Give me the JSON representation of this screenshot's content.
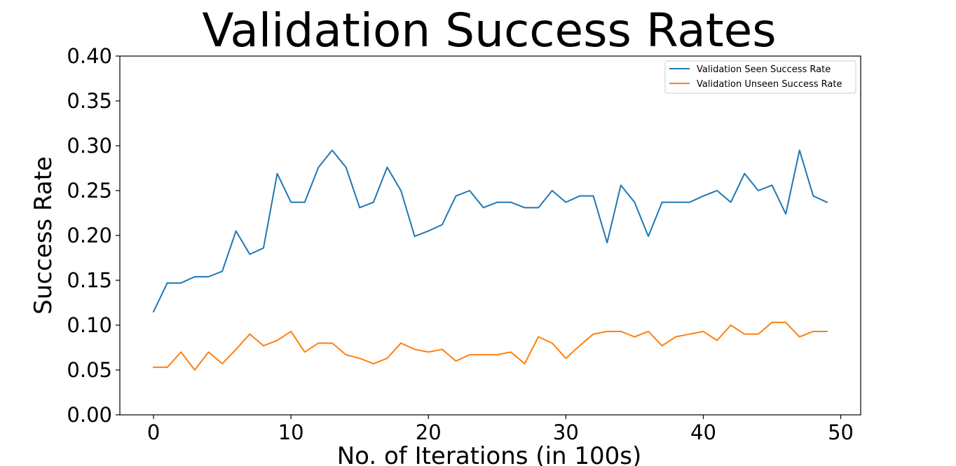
{
  "chart_data": {
    "type": "line",
    "title": "Validation Success Rates",
    "xlabel": "No. of Iterations (in 100s)",
    "ylabel": "Success Rate",
    "xlim": [
      -2.45,
      51.45
    ],
    "ylim": [
      0.0,
      0.4
    ],
    "xticks": [
      0,
      10,
      20,
      30,
      40,
      50
    ],
    "yticks": [
      0.0,
      0.05,
      0.1,
      0.15,
      0.2,
      0.25,
      0.3,
      0.35,
      0.4
    ],
    "xtick_labels": [
      "0",
      "10",
      "20",
      "30",
      "40",
      "50"
    ],
    "ytick_labels": [
      "0.00",
      "0.05",
      "0.10",
      "0.15",
      "0.20",
      "0.25",
      "0.30",
      "0.35",
      "0.40"
    ],
    "grid": false,
    "legend": "top-right",
    "x": [
      0,
      1,
      2,
      3,
      4,
      5,
      6,
      7,
      8,
      9,
      10,
      11,
      12,
      13,
      14,
      15,
      16,
      17,
      18,
      19,
      20,
      21,
      22,
      23,
      24,
      25,
      26,
      27,
      28,
      29,
      30,
      31,
      32,
      33,
      34,
      35,
      36,
      37,
      38,
      39,
      40,
      41,
      42,
      43,
      44,
      45,
      46,
      47,
      48,
      49
    ],
    "series": [
      {
        "name": "Validation Seen Success Rate",
        "color": "#1f77b4",
        "values": [
          0.115,
          0.147,
          0.147,
          0.154,
          0.154,
          0.16,
          0.205,
          0.179,
          0.186,
          0.269,
          0.237,
          0.237,
          0.276,
          0.295,
          0.276,
          0.231,
          0.237,
          0.276,
          0.25,
          0.199,
          0.205,
          0.212,
          0.244,
          0.25,
          0.231,
          0.237,
          0.237,
          0.231,
          0.231,
          0.25,
          0.237,
          0.244,
          0.244,
          0.192,
          0.256,
          0.237,
          0.199,
          0.237,
          0.237,
          0.237,
          0.244,
          0.25,
          0.237,
          0.269,
          0.25,
          0.256,
          0.224,
          0.295,
          0.244,
          0.237
        ]
      },
      {
        "name": "Validation Unseen Success Rate",
        "color": "#ff7f0e",
        "values": [
          0.053,
          0.053,
          0.07,
          0.05,
          0.07,
          0.057,
          0.073,
          0.09,
          0.077,
          0.083,
          0.093,
          0.07,
          0.08,
          0.08,
          0.067,
          0.063,
          0.057,
          0.063,
          0.08,
          0.073,
          0.07,
          0.073,
          0.06,
          0.067,
          0.067,
          0.067,
          0.07,
          0.057,
          0.087,
          0.08,
          0.063,
          0.077,
          0.09,
          0.093,
          0.093,
          0.087,
          0.093,
          0.077,
          0.087,
          0.09,
          0.093,
          0.083,
          0.1,
          0.09,
          0.09,
          0.103,
          0.103,
          0.087,
          0.093,
          0.093
        ]
      }
    ]
  }
}
